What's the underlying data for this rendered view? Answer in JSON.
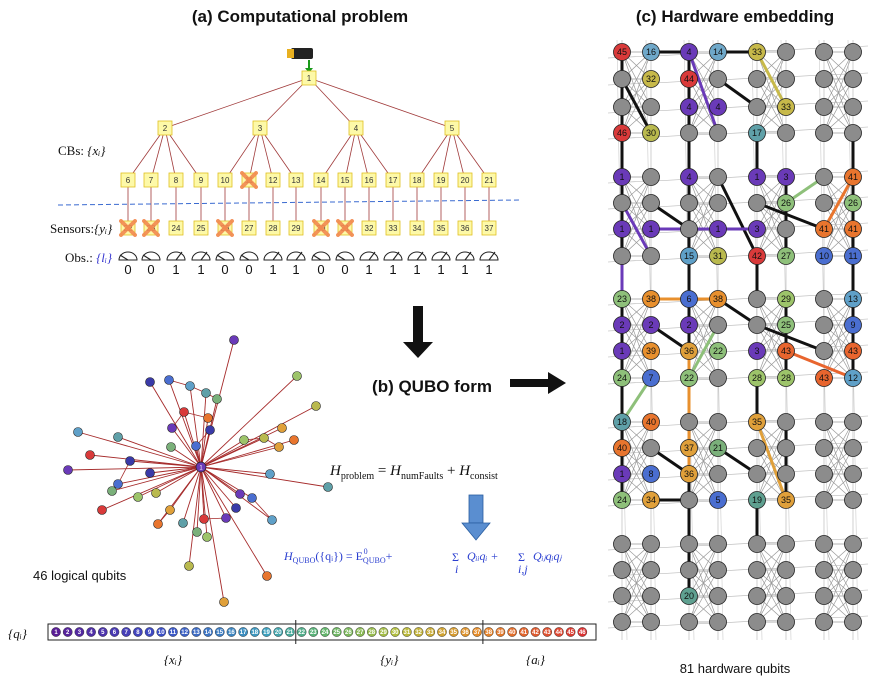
{
  "panels": {
    "a_title": "(a) Computational problem",
    "b_title": "(b) QUBO form",
    "c_title": "(c) Hardware embedding"
  },
  "tree": {
    "root": "1",
    "level2": [
      "2",
      "3",
      "4",
      "5"
    ],
    "cbs": [
      "6",
      "7",
      "8",
      "9",
      "10",
      "11",
      "12",
      "13",
      "14",
      "15",
      "16",
      "17",
      "18",
      "19",
      "20",
      "21"
    ],
    "sensors": [
      "22",
      "23",
      "24",
      "25",
      "26",
      "27",
      "28",
      "29",
      "30",
      "31",
      "32",
      "33",
      "34",
      "35",
      "36",
      "37"
    ],
    "observations": [
      "0",
      "0",
      "1",
      "1",
      "0",
      "0",
      "1",
      "1",
      "0",
      "0",
      "1",
      "1",
      "1",
      "1",
      "1",
      "1"
    ],
    "crossed_cbs": [
      "11"
    ],
    "crossed_sensors": [
      "22",
      "23",
      "26",
      "30",
      "31"
    ],
    "label_cbs": "CBs: {x_i}",
    "label_cbs_pre": "CBs: ",
    "label_cbs_var": "{xᵢ}",
    "label_sensors_pre": "Sensors:",
    "label_sensors_var": "{yᵢ}",
    "label_obs_pre": "Obs.: ",
    "label_obs_var": "{lᵢ}"
  },
  "equations": {
    "h_problem": "H_problem = H_numFaults + H_consist",
    "h_problem_lhs": "H",
    "h_problem_lhs_sub": "problem",
    "h_problem_eq": " = ",
    "h_problem_t1": "H",
    "h_problem_t1_sub": "numFaults",
    "h_problem_plus": " + ",
    "h_problem_t2": "H",
    "h_problem_t2_sub": "consist",
    "h_qubo": "H_QUBO({q_i}) = E⁰_QUBO + Σ_i Q_ii q_i + Σ_i,j Q_ij q_i q_j",
    "h_qubo_lhs": "H",
    "h_qubo_lhs_sub": "QUBO",
    "h_qubo_arg": "({qᵢ}) = E",
    "h_qubo_e_sub": "QUBO",
    "h_qubo_e_sup": "0",
    "h_qubo_plus1": "+",
    "h_qubo_sigma": "Σ",
    "h_qubo_sum1_idx": "i",
    "h_qubo_term1": "Qᵢᵢqᵢ +",
    "h_qubo_sum2_idx": "i,j",
    "h_qubo_term2": "Qᵢⱼqᵢqⱼ"
  },
  "graph": {
    "caption": "46 logical qubits",
    "center_label": "1"
  },
  "qubit_strip": {
    "label": "{qᵢ}",
    "groups": [
      {
        "name": "{xᵢ}",
        "from": 1,
        "to": 21
      },
      {
        "name": "{yᵢ}",
        "from": 22,
        "to": 37
      },
      {
        "name": "{aᵢ}",
        "from": 38,
        "to": 46
      }
    ]
  },
  "hardware": {
    "caption": "81 hardware qubits",
    "labels": [
      {
        "n": "45",
        "c": "#d93a3a"
      },
      {
        "n": "16",
        "c": "#6fa8c9"
      },
      {
        "n": "4",
        "c": "#6a3ab8"
      },
      {
        "n": "14",
        "c": "#6fa8c9"
      },
      {
        "n": "33",
        "c": "#c7b94a"
      },
      {
        "n": "32",
        "c": "#c7b94a"
      },
      {
        "n": "44",
        "c": "#d93a3a"
      },
      {
        "n": "30",
        "c": "#b9b94e"
      },
      {
        "n": "33",
        "c": "#c7b94a"
      },
      {
        "n": "4",
        "c": "#6a3ab8"
      },
      {
        "n": "4",
        "c": "#6a3ab8"
      },
      {
        "n": "46",
        "c": "#d93a3a"
      },
      {
        "n": "30",
        "c": "#b9b94e"
      },
      {
        "n": "17",
        "c": "#5fa0a8"
      },
      {
        "n": "1",
        "c": "#6a3ab8"
      },
      {
        "n": "4",
        "c": "#6a3ab8"
      },
      {
        "n": "1",
        "c": "#6a3ab8"
      },
      {
        "n": "3",
        "c": "#6a3ab8"
      },
      {
        "n": "41",
        "c": "#e8752e"
      },
      {
        "n": "26",
        "c": "#8ec07a"
      },
      {
        "n": "26",
        "c": "#8ec07a"
      },
      {
        "n": "41",
        "c": "#e8752e"
      },
      {
        "n": "41",
        "c": "#e8752e"
      },
      {
        "n": "1",
        "c": "#6a3ab8"
      },
      {
        "n": "1",
        "c": "#6a3ab8"
      },
      {
        "n": "3",
        "c": "#6a3ab8"
      },
      {
        "n": "1",
        "c": "#6a3ab8"
      },
      {
        "n": "15",
        "c": "#5fa0c8"
      },
      {
        "n": "31",
        "c": "#b9b94e"
      },
      {
        "n": "42",
        "c": "#d93a3a"
      },
      {
        "n": "27",
        "c": "#8ec07a"
      },
      {
        "n": "10",
        "c": "#4a6ed0"
      },
      {
        "n": "11",
        "c": "#4a6ed0"
      },
      {
        "n": "23",
        "c": "#8ec07a"
      },
      {
        "n": "38",
        "c": "#e8902e"
      },
      {
        "n": "6",
        "c": "#4a6ed0"
      },
      {
        "n": "38",
        "c": "#e8902e"
      },
      {
        "n": "29",
        "c": "#9dc46a"
      },
      {
        "n": "13",
        "c": "#5fa0c8"
      },
      {
        "n": "2",
        "c": "#6a3ab8"
      },
      {
        "n": "2",
        "c": "#6a3ab8"
      },
      {
        "n": "2",
        "c": "#6a3ab8"
      },
      {
        "n": "25",
        "c": "#8ec07a"
      },
      {
        "n": "9",
        "c": "#4a6ed0"
      },
      {
        "n": "1",
        "c": "#6a3ab8"
      },
      {
        "n": "39",
        "c": "#e8902e"
      },
      {
        "n": "36",
        "c": "#e0a03a"
      },
      {
        "n": "22",
        "c": "#8ec07a"
      },
      {
        "n": "3",
        "c": "#6a3ab8"
      },
      {
        "n": "43",
        "c": "#e8652e"
      },
      {
        "n": "43",
        "c": "#e8652e"
      },
      {
        "n": "24",
        "c": "#8ec07a"
      },
      {
        "n": "7",
        "c": "#4a6ed0"
      },
      {
        "n": "22",
        "c": "#8ec07a"
      },
      {
        "n": "28",
        "c": "#9dc46a"
      },
      {
        "n": "28",
        "c": "#9dc46a"
      },
      {
        "n": "43",
        "c": "#e8652e"
      },
      {
        "n": "12",
        "c": "#5fa0c8"
      },
      {
        "n": "18",
        "c": "#5fa0a8"
      },
      {
        "n": "40",
        "c": "#e8752e"
      },
      {
        "n": "35",
        "c": "#e0a03a"
      },
      {
        "n": "40",
        "c": "#e8752e"
      },
      {
        "n": "37",
        "c": "#e0a03a"
      },
      {
        "n": "21",
        "c": "#7ab07a"
      },
      {
        "n": "1",
        "c": "#6a3ab8"
      },
      {
        "n": "8",
        "c": "#4a6ed0"
      },
      {
        "n": "36",
        "c": "#e0a03a"
      },
      {
        "n": "24",
        "c": "#8ec07a"
      },
      {
        "n": "34",
        "c": "#e0a03a"
      },
      {
        "n": "5",
        "c": "#4a6ed0"
      },
      {
        "n": "19",
        "c": "#5fa090"
      },
      {
        "n": "35",
        "c": "#e0a03a"
      },
      {
        "n": "20",
        "c": "#5fa090"
      }
    ]
  }
}
